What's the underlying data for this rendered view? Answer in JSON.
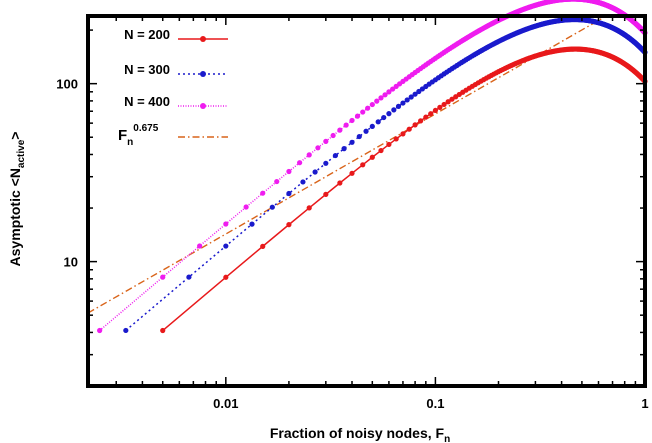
{
  "chart_data": {
    "type": "line",
    "xlabel": "Fraction of noisy nodes, F",
    "xlabel_sub": "n",
    "ylabel": "Asymptotic <N",
    "ylabel_sub": "active",
    "ylabel_tail": ">",
    "xscale": "log",
    "yscale": "log",
    "xlim": [
      0.0022,
      1
    ],
    "ylim": [
      2,
      240
    ],
    "grid": false,
    "legend_position": "top-left",
    "x_ticks": [
      {
        "value": 0.01,
        "label": "0.01"
      },
      {
        "value": 0.1,
        "label": "0.1"
      },
      {
        "value": 1,
        "label": "1"
      }
    ],
    "y_ticks": [
      {
        "value": 10,
        "label": "10"
      },
      {
        "value": 100,
        "label": "100"
      }
    ],
    "series": [
      {
        "name": "N = 200",
        "N": 200,
        "color": "#e8191b",
        "dash": "",
        "x_min": 0.005,
        "x_max": 1,
        "y_at_x_max": 103,
        "y_at_x_min": 4.1
      },
      {
        "name": "N = 300",
        "N": 300,
        "color": "#1a1acc",
        "dash": "2,3",
        "x_min": 0.00333,
        "x_max": 1,
        "y_at_x_max": 150,
        "y_at_x_min": 4.1
      },
      {
        "name": "N = 400",
        "N": 400,
        "color": "#ef1cef",
        "dash": "1,1.5",
        "x_min": 0.0025,
        "x_max": 1,
        "y_at_x_max": 193,
        "y_at_x_min": 4.1
      }
    ],
    "reference_line": {
      "label_base": "F",
      "label_sub": "n",
      "label_sup": "0.675",
      "exponent": 0.675,
      "coefficient": 320,
      "color": "#d9641a",
      "dash": "7,3,1.5,3"
    }
  }
}
